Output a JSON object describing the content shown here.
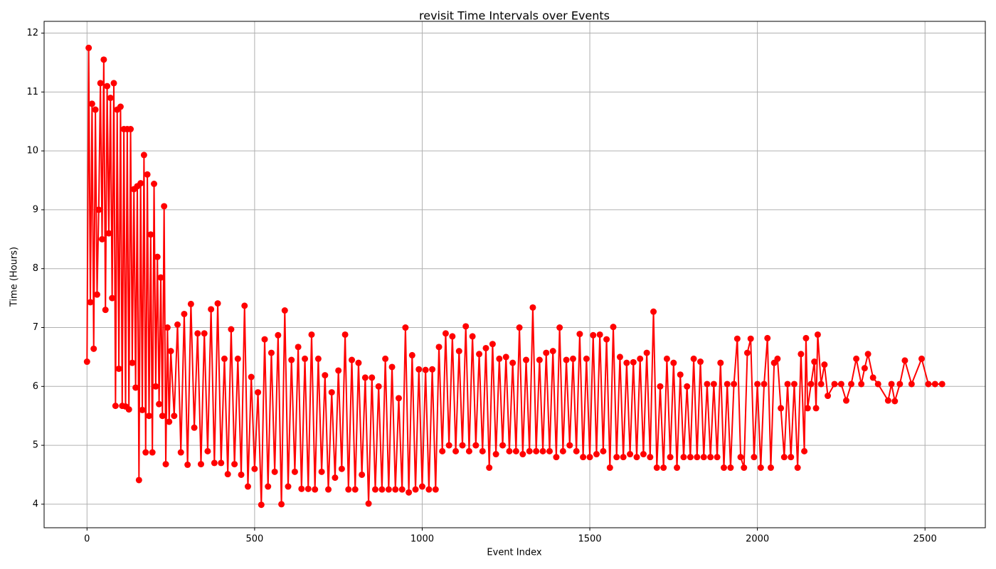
{
  "chart_data": {
    "type": "line",
    "title": "revisit Time Intervals over Events",
    "xlabel": "Event Index",
    "ylabel": "Time (Hours)",
    "xlim": [
      -128,
      2680
    ],
    "ylim": [
      3.6,
      12.2
    ],
    "xticks": [
      0,
      500,
      1000,
      1500,
      2000,
      2500
    ],
    "yticks": [
      4,
      5,
      6,
      7,
      8,
      9,
      10,
      11,
      12
    ],
    "grid": true,
    "series": [
      {
        "color": "#ff0000",
        "x": [
          0,
          5,
          10,
          15,
          20,
          25,
          30,
          35,
          40,
          45,
          50,
          55,
          60,
          65,
          70,
          75,
          80,
          85,
          90,
          95,
          100,
          105,
          110,
          115,
          120,
          125,
          130,
          135,
          140,
          145,
          150,
          155,
          160,
          165,
          170,
          175,
          180,
          185,
          190,
          195,
          200,
          205,
          210,
          215,
          220,
          225,
          230,
          235,
          240,
          245,
          250,
          260,
          270,
          280,
          290,
          300,
          310,
          320,
          330,
          340,
          350,
          360,
          370,
          380,
          390,
          400,
          410,
          420,
          430,
          440,
          450,
          460,
          470,
          480,
          490,
          500,
          510,
          520,
          530,
          540,
          550,
          560,
          570,
          580,
          590,
          600,
          610,
          620,
          630,
          640,
          650,
          660,
          670,
          680,
          690,
          700,
          710,
          720,
          730,
          740,
          750,
          760,
          770,
          780,
          790,
          800,
          810,
          820,
          830,
          840,
          850,
          860,
          870,
          880,
          890,
          900,
          910,
          920,
          930,
          940,
          950,
          960,
          970,
          980,
          990,
          1000,
          1010,
          1020,
          1030,
          1040,
          1050,
          1060,
          1070,
          1080,
          1090,
          1100,
          1110,
          1120,
          1130,
          1140,
          1150,
          1160,
          1170,
          1180,
          1190,
          1200,
          1210,
          1220,
          1230,
          1240,
          1250,
          1260,
          1270,
          1280,
          1290,
          1300,
          1310,
          1320,
          1330,
          1340,
          1350,
          1360,
          1370,
          1380,
          1390,
          1400,
          1410,
          1420,
          1430,
          1440,
          1450,
          1460,
          1470,
          1480,
          1490,
          1500,
          1510,
          1520,
          1530,
          1540,
          1550,
          1560,
          1570,
          1580,
          1590,
          1600,
          1610,
          1620,
          1630,
          1640,
          1650,
          1660,
          1670,
          1680,
          1690,
          1700,
          1710,
          1720,
          1730,
          1740,
          1750,
          1760,
          1770,
          1780,
          1790,
          1800,
          1810,
          1820,
          1830,
          1840,
          1850,
          1860,
          1870,
          1880,
          1890,
          1900,
          1910,
          1920,
          1930,
          1940,
          1950,
          1960,
          1970,
          1980,
          1990,
          2000,
          2010,
          2020,
          2030,
          2040,
          2050,
          2060,
          2070,
          2080,
          2090,
          2100,
          2110,
          2120,
          2130,
          2140,
          2145,
          2150,
          2160,
          2170,
          2175,
          2180,
          2190,
          2200,
          2210,
          2230,
          2250,
          2265,
          2280,
          2295,
          2310,
          2320,
          2330,
          2345,
          2360,
          2390,
          2400,
          2410,
          2425,
          2440,
          2460,
          2490,
          2510,
          2530,
          2551
        ],
        "values": [
          6.42,
          11.75,
          7.43,
          10.8,
          6.64,
          10.7,
          7.56,
          9.0,
          11.15,
          8.5,
          11.55,
          7.3,
          11.1,
          8.6,
          10.9,
          7.5,
          11.15,
          5.67,
          10.7,
          6.3,
          10.75,
          5.67,
          10.37,
          5.66,
          10.37,
          5.61,
          10.37,
          6.4,
          9.35,
          5.98,
          9.4,
          4.41,
          9.45,
          5.6,
          9.93,
          4.88,
          9.6,
          5.5,
          8.58,
          4.88,
          9.44,
          6.0,
          8.2,
          5.7,
          7.85,
          5.5,
          9.06,
          4.68,
          7.0,
          5.4,
          6.6,
          5.5,
          7.05,
          4.88,
          7.23,
          4.67,
          7.4,
          5.3,
          6.9,
          4.68,
          6.9,
          4.9,
          7.31,
          4.7,
          7.41,
          4.7,
          6.47,
          4.51,
          6.97,
          4.68,
          6.47,
          4.5,
          7.37,
          4.3,
          6.16,
          4.6,
          5.9,
          3.99,
          6.8,
          4.3,
          6.57,
          4.55,
          6.87,
          4.0,
          7.29,
          4.3,
          6.45,
          4.55,
          6.67,
          4.26,
          6.47,
          4.26,
          6.88,
          4.25,
          6.47,
          4.55,
          6.19,
          4.25,
          5.9,
          4.45,
          6.27,
          4.6,
          6.88,
          4.25,
          6.45,
          4.25,
          6.4,
          4.5,
          6.15,
          4.01,
          6.15,
          4.25,
          6.0,
          4.25,
          6.47,
          4.25,
          6.33,
          4.25,
          5.8,
          4.25,
          7.0,
          4.2,
          6.53,
          4.25,
          6.29,
          4.3,
          6.28,
          4.25,
          6.29,
          4.25,
          6.67,
          4.9,
          6.9,
          5.0,
          6.85,
          4.9,
          6.6,
          5.0,
          7.02,
          4.9,
          6.85,
          5.0,
          6.55,
          4.9,
          6.65,
          4.62,
          6.72,
          4.85,
          6.47,
          5.0,
          6.5,
          4.9,
          6.4,
          4.9,
          7.0,
          4.85,
          6.45,
          4.9,
          7.34,
          4.9,
          6.45,
          4.9,
          6.57,
          4.9,
          6.6,
          4.8,
          7.0,
          4.9,
          6.45,
          5.0,
          6.47,
          4.9,
          6.89,
          4.8,
          6.47,
          4.8,
          6.87,
          4.85,
          6.88,
          4.9,
          6.8,
          4.62,
          7.01,
          4.8,
          6.5,
          4.8,
          6.4,
          4.85,
          6.41,
          4.8,
          6.47,
          4.85,
          6.57,
          4.8,
          7.27,
          4.62,
          6.0,
          4.62,
          6.47,
          4.8,
          6.4,
          4.62,
          6.2,
          4.8,
          6.0,
          4.8,
          6.47,
          4.8,
          6.42,
          4.8,
          6.04,
          4.8,
          6.04,
          4.8,
          6.4,
          4.62,
          6.04,
          4.62,
          6.04,
          6.81,
          4.8,
          4.62,
          6.57,
          6.81,
          4.8,
          6.04,
          4.62,
          6.04,
          6.82,
          4.62,
          6.4,
          6.47,
          5.63,
          4.8,
          6.04,
          4.8,
          6.04,
          4.62,
          6.55,
          4.9,
          6.82,
          5.63,
          6.04,
          6.42,
          5.63,
          6.88,
          6.04,
          6.37,
          5.84,
          6.04,
          6.04,
          5.76,
          6.04,
          6.47,
          6.04,
          6.31,
          6.55,
          6.15,
          6.04,
          5.76,
          6.04,
          5.75,
          6.04,
          6.44,
          6.04,
          6.47,
          6.04,
          6.04,
          6.04
        ]
      }
    ]
  }
}
